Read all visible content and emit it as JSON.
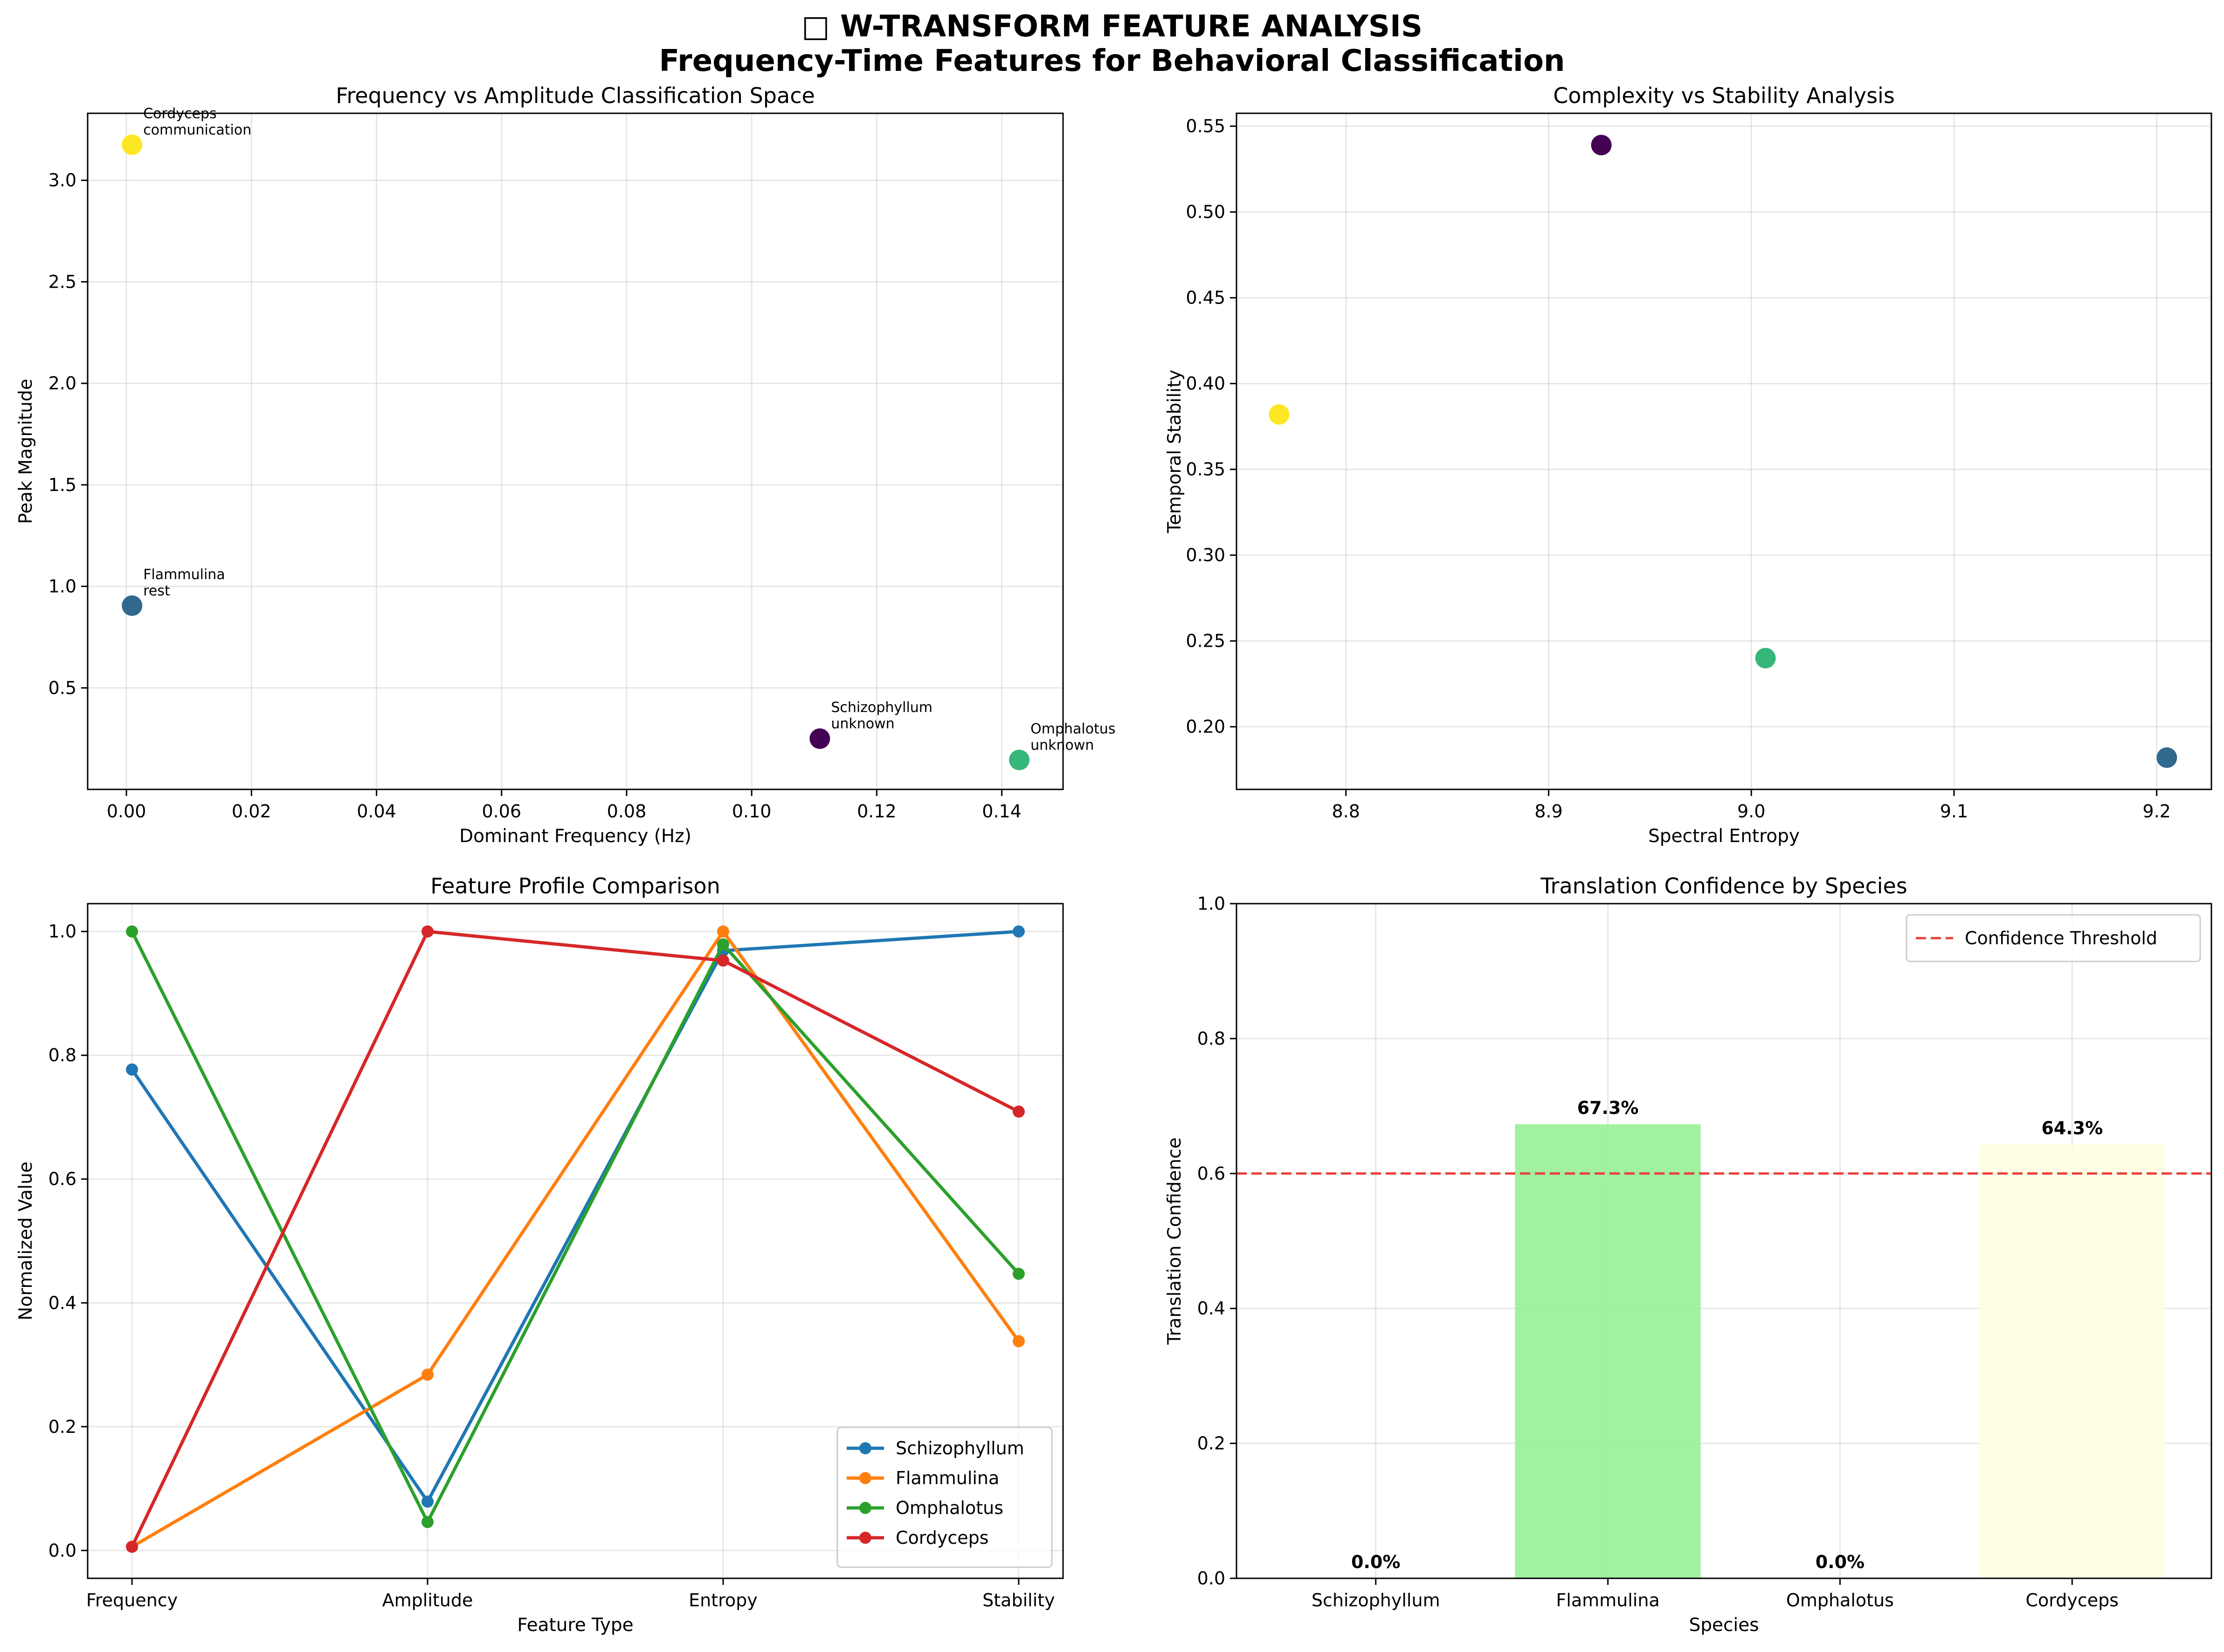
{
  "figure": {
    "title_icon": "□",
    "title_line1": "W-TRANSFORM FEATURE ANALYSIS",
    "title_line2": "Frequency-Time Features for Behavioral Classification"
  },
  "colors": {
    "Schizophyllum_scatter": "#440154",
    "Flammulina_scatter": "#31688e",
    "Omphalotus_scatter": "#35b779",
    "Cordyceps_scatter": "#fde725",
    "Schizophyllum_line": "#1f77b4",
    "Flammulina_line": "#ff7f0e",
    "Omphalotus_line": "#2ca02c",
    "Cordyceps_line": "#d62728",
    "threshold": "#e8413c",
    "bar_Flammulina": "#90ee90",
    "bar_Cordyceps": "#ffffe0"
  },
  "chart_data": [
    {
      "type": "scatter",
      "title": "Frequency vs Amplitude Classification Space",
      "xlabel": "Dominant Frequency (Hz)",
      "ylabel": "Peak Magnitude",
      "xlim": [
        -0.0062,
        0.1498
      ],
      "ylim": [
        0.0,
        3.33
      ],
      "xticks": [
        0.0,
        0.02,
        0.04,
        0.06,
        0.08,
        0.1,
        0.12,
        0.14
      ],
      "yticks": [
        0.5,
        1.0,
        1.5,
        2.0,
        2.5,
        3.0
      ],
      "xtick_labels": [
        "0.00",
        "0.02",
        "0.04",
        "0.06",
        "0.08",
        "0.10",
        "0.12",
        "0.14"
      ],
      "ytick_labels": [
        "0.5",
        "1.0",
        "1.5",
        "2.0",
        "2.5",
        "3.0"
      ],
      "grid": true,
      "points": [
        {
          "species": "Schizophyllum",
          "x": 0.1109,
          "y": 0.25,
          "label1": "Schizophyllum",
          "label2": "unknown"
        },
        {
          "species": "Flammulina",
          "x": 0.0009,
          "y": 0.905,
          "label1": "Flammulina",
          "label2": "rest"
        },
        {
          "species": "Omphalotus",
          "x": 0.1428,
          "y": 0.145,
          "label1": "Omphalotus",
          "label2": "unknown"
        },
        {
          "species": "Cordyceps",
          "x": 0.0009,
          "y": 3.175,
          "label1": "Cordyceps",
          "label2": "communication"
        }
      ]
    },
    {
      "type": "scatter",
      "title": "Complexity vs Stability Analysis",
      "xlabel": "Spectral Entropy",
      "ylabel": "Temporal Stability",
      "xlim": [
        8.746,
        9.227
      ],
      "ylim": [
        0.1635,
        0.5575
      ],
      "xticks": [
        8.8,
        8.9,
        9.0,
        9.1,
        9.2
      ],
      "yticks": [
        0.2,
        0.25,
        0.3,
        0.35,
        0.4,
        0.45,
        0.5,
        0.55
      ],
      "xtick_labels": [
        "8.8",
        "8.9",
        "9.0",
        "9.1",
        "9.2"
      ],
      "ytick_labels": [
        "0.20",
        "0.25",
        "0.30",
        "0.35",
        "0.40",
        "0.45",
        "0.50",
        "0.55"
      ],
      "grid": true,
      "points": [
        {
          "species": "Schizophyllum",
          "x": 8.926,
          "y": 0.539
        },
        {
          "species": "Flammulina",
          "x": 9.205,
          "y": 0.182
        },
        {
          "species": "Omphalotus",
          "x": 9.007,
          "y": 0.24
        },
        {
          "species": "Cordyceps",
          "x": 8.767,
          "y": 0.382
        }
      ]
    },
    {
      "type": "line",
      "title": "Feature Profile Comparison",
      "xlabel": "Feature Type",
      "ylabel": "Normalized Value",
      "categories": [
        "Frequency",
        "Amplitude",
        "Entropy",
        "Stability"
      ],
      "ylim": [
        -0.045,
        1.045
      ],
      "yticks": [
        0.0,
        0.2,
        0.4,
        0.6,
        0.8,
        1.0
      ],
      "ytick_labels": [
        "0.0",
        "0.2",
        "0.4",
        "0.6",
        "0.8",
        "1.0"
      ],
      "grid": true,
      "legend": "lower-right",
      "series": [
        {
          "name": "Schizophyllum",
          "values": [
            0.777,
            0.079,
            0.969,
            1.0
          ]
        },
        {
          "name": "Flammulina",
          "values": [
            0.006,
            0.284,
            1.0,
            0.338
          ]
        },
        {
          "name": "Omphalotus",
          "values": [
            1.0,
            0.046,
            0.979,
            0.447
          ]
        },
        {
          "name": "Cordyceps",
          "values": [
            0.006,
            1.0,
            0.953,
            0.709
          ]
        }
      ]
    },
    {
      "type": "bar",
      "title": "Translation Confidence by Species",
      "xlabel": "Species",
      "ylabel": "Translation Confidence",
      "categories": [
        "Schizophyllum",
        "Flammulina",
        "Omphalotus",
        "Cordyceps"
      ],
      "values": [
        0.0,
        0.673,
        0.0,
        0.643
      ],
      "value_labels": [
        "0.0%",
        "67.3%",
        "0.0%",
        "64.3%"
      ],
      "ylim": [
        0.0,
        1.0
      ],
      "yticks": [
        0.0,
        0.2,
        0.4,
        0.6,
        0.8,
        1.0
      ],
      "ytick_labels": [
        "0.0",
        "0.2",
        "0.4",
        "0.6",
        "0.8",
        "1.0"
      ],
      "threshold": 0.6,
      "threshold_label": "Confidence Threshold",
      "grid": true,
      "legend": "top-right"
    }
  ]
}
